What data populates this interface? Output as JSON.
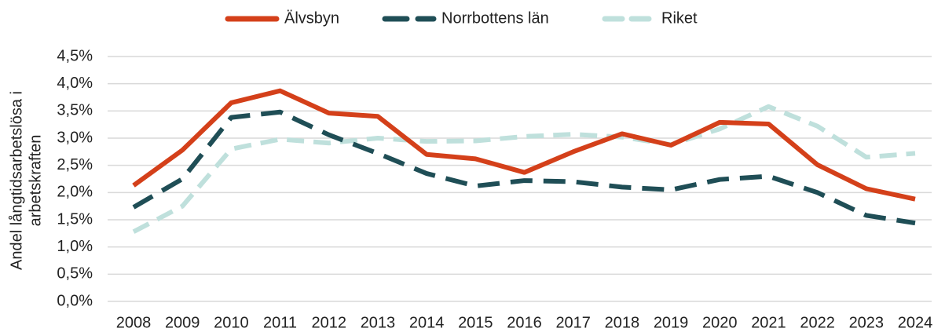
{
  "chart_data": {
    "type": "line",
    "ylabel": [
      "Andel långtidsarbetslösa i",
      "arbetskraften"
    ],
    "categories": [
      "2008",
      "2009",
      "2010",
      "2011",
      "2012",
      "2013",
      "2014",
      "2015",
      "2016",
      "2017",
      "2018",
      "2019",
      "2020",
      "2021",
      "2022",
      "2023",
      "2024"
    ],
    "series": [
      {
        "name": "Älvsbyn",
        "color": "#d4401a",
        "dash": "none",
        "values": [
          2.13,
          2.78,
          3.65,
          3.87,
          3.46,
          3.4,
          2.7,
          2.62,
          2.37,
          2.75,
          3.08,
          2.87,
          3.29,
          3.26,
          2.51,
          2.07,
          1.88
        ]
      },
      {
        "name": "Norrbottens län",
        "color": "#1f4e56",
        "dash": "28 14",
        "values": [
          1.73,
          2.25,
          3.38,
          3.48,
          3.06,
          2.72,
          2.35,
          2.12,
          2.22,
          2.2,
          2.1,
          2.05,
          2.24,
          2.3,
          2.0,
          1.58,
          1.44
        ]
      },
      {
        "name": "Riket",
        "color": "#bfe0dc",
        "dash": "22 12",
        "values": [
          1.28,
          1.75,
          2.8,
          2.98,
          2.91,
          3.0,
          2.94,
          2.95,
          3.03,
          3.07,
          3.02,
          2.88,
          3.17,
          3.58,
          3.22,
          2.65,
          2.72
        ]
      }
    ],
    "ylim": [
      0,
      4.5
    ],
    "yticks": [
      {
        "value": 0,
        "label": "0,0%"
      },
      {
        "value": 0.5,
        "label": "0,5%"
      },
      {
        "value": 1,
        "label": "1,0%"
      },
      {
        "value": 1.5,
        "label": "1,5%"
      },
      {
        "value": 2,
        "label": "2,0%"
      },
      {
        "value": 2.5,
        "label": "2,5%"
      },
      {
        "value": 3,
        "label": "3,0%"
      },
      {
        "value": 3.5,
        "label": "3,5%"
      },
      {
        "value": 4,
        "label": "4,0%"
      },
      {
        "value": 4.5,
        "label": "4,5%"
      }
    ],
    "grid": true,
    "legend": "top"
  }
}
